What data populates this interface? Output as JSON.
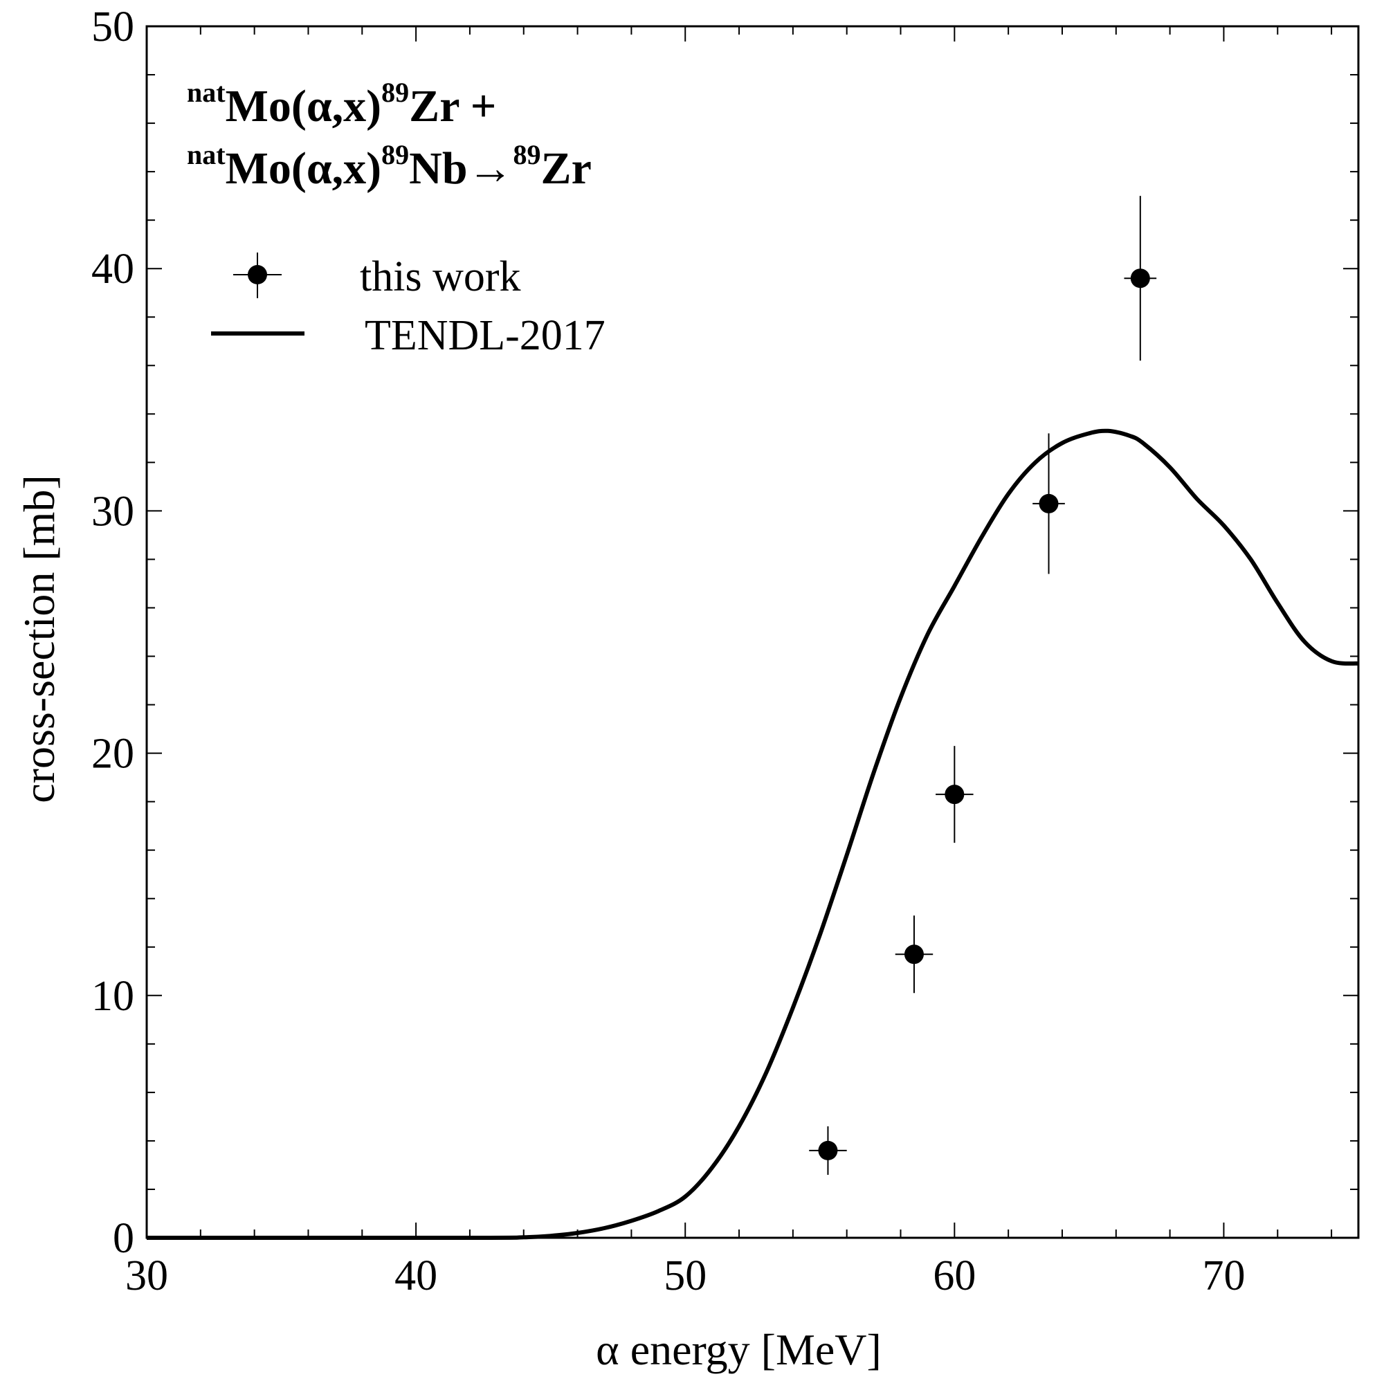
{
  "chart_data": {
    "type": "scatter",
    "title_lines": [
      [
        {
          "text": "nat",
          "sup": true
        },
        {
          "text": "Mo(α,x)",
          "sup": false
        },
        {
          "text": "89",
          "sup": true
        },
        {
          "text": "Zr +",
          "sup": false
        }
      ],
      [
        {
          "text": "nat",
          "sup": true
        },
        {
          "text": "Mo(α,x)",
          "sup": false
        },
        {
          "text": "89",
          "sup": true
        },
        {
          "text": "Nb→",
          "sup": false
        },
        {
          "text": "89",
          "sup": true
        },
        {
          "text": "Zr",
          "sup": false
        }
      ]
    ],
    "xlabel": "α energy [MeV]",
    "ylabel": "cross-section [mb]",
    "xlim": [
      30,
      75
    ],
    "ylim": [
      0,
      50
    ],
    "x_major_ticks": [
      30,
      40,
      50,
      60,
      70
    ],
    "x_tick_labels": [
      "30",
      "40",
      "50",
      "60",
      "70"
    ],
    "x_minor_step": 2,
    "y_major_ticks": [
      0,
      10,
      20,
      30,
      40,
      50
    ],
    "y_tick_labels": [
      "0",
      "10",
      "20",
      "30",
      "40",
      "50"
    ],
    "y_minor_step": 2,
    "legend": {
      "placement": "top-left",
      "entries": [
        {
          "label": "this work",
          "marker": "point-with-errorbars"
        },
        {
          "label": "TENDL-2017",
          "marker": "line"
        }
      ]
    },
    "series": [
      {
        "name": "this work",
        "kind": "points",
        "color": "#000000",
        "points": [
          {
            "x": 55.3,
            "y": 3.6,
            "yerr": 1.0,
            "xerr": 0.7
          },
          {
            "x": 58.5,
            "y": 11.7,
            "yerr": 1.6,
            "xerr": 0.7
          },
          {
            "x": 60.0,
            "y": 18.3,
            "yerr": 2.0,
            "xerr": 0.7
          },
          {
            "x": 63.5,
            "y": 30.3,
            "yerr": 2.9,
            "xerr": 0.6
          },
          {
            "x": 66.9,
            "y": 39.6,
            "yerr": 3.4,
            "xerr": 0.6
          }
        ]
      },
      {
        "name": "TENDL-2017",
        "kind": "line",
        "color": "#000000",
        "x": [
          30,
          42,
          44,
          45,
          46,
          47,
          48,
          49,
          50,
          51,
          52,
          53,
          54,
          55,
          56,
          57,
          58,
          59,
          60,
          61,
          62,
          63,
          64,
          65,
          65.7,
          66.5,
          67,
          68,
          69,
          70,
          71,
          72,
          73,
          74,
          75
        ],
        "y": [
          0,
          0,
          0.02,
          0.08,
          0.2,
          0.4,
          0.7,
          1.1,
          1.7,
          2.9,
          4.6,
          6.8,
          9.5,
          12.5,
          15.8,
          19.2,
          22.3,
          24.9,
          26.9,
          28.9,
          30.7,
          32.0,
          32.8,
          33.2,
          33.3,
          33.1,
          32.8,
          31.8,
          30.5,
          29.4,
          28.0,
          26.2,
          24.6,
          23.8,
          23.7
        ]
      }
    ]
  }
}
